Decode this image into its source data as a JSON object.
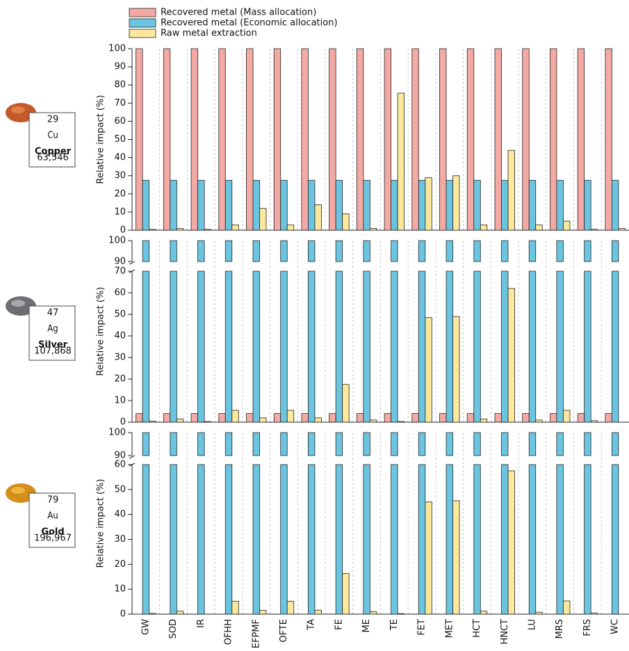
{
  "chart_data": [
    {
      "type": "bar",
      "y_label": "Relative impact (%)",
      "element": {
        "number": "29",
        "symbol": "Cu",
        "name": "Copper",
        "mass": "63,546"
      },
      "ylim": [
        0,
        100
      ],
      "yticks": [
        0,
        10,
        20,
        30,
        40,
        50,
        60,
        70,
        80,
        90,
        100
      ],
      "grid": true,
      "series": [
        {
          "name": "Recovered metal (Mass allocation)",
          "color": "#f4aaa4",
          "values": [
            100,
            100,
            100,
            100,
            100,
            100,
            100,
            100,
            100,
            100,
            100,
            100,
            100,
            100,
            100,
            100,
            100,
            100
          ]
        },
        {
          "name": "Recovered metal (Economic allocation)",
          "color": "#6cc5e0",
          "values": [
            27.5,
            27.5,
            27.5,
            27.5,
            27.5,
            27.5,
            27.5,
            27.5,
            27.5,
            27.5,
            27.5,
            27.5,
            27.5,
            27.5,
            27.5,
            27.5,
            27.5,
            27.5
          ]
        },
        {
          "name": "Raw metal extraction",
          "color": "#fbe89c",
          "values": [
            0.5,
            1,
            0.5,
            3,
            12,
            3,
            14,
            9,
            1,
            75.5,
            29,
            30,
            3,
            44,
            3,
            5,
            0.5,
            1
          ]
        }
      ]
    },
    {
      "type": "bar",
      "y_label": "Relative impact (%)",
      "element": {
        "number": "47",
        "symbol": "Ag",
        "name": "Silver",
        "mass": "107,868"
      },
      "ylim": [
        0,
        70
      ],
      "yticks": [
        0,
        10,
        20,
        30,
        40,
        50,
        60,
        70
      ],
      "ylim_upper": [
        90,
        100
      ],
      "yticks_upper": [
        90,
        100
      ],
      "grid": true,
      "series": [
        {
          "color": "#f4aaa4",
          "values": [
            4,
            4,
            4,
            4,
            4,
            4,
            4,
            4,
            4,
            4,
            4,
            4,
            4,
            4,
            4,
            4,
            4,
            4
          ]
        },
        {
          "color": "#6cc5e0",
          "values": [
            100,
            100,
            100,
            100,
            100,
            100,
            100,
            100,
            100,
            100,
            100,
            100,
            100,
            100,
            100,
            100,
            100,
            100
          ]
        },
        {
          "color": "#fbe89c",
          "values": [
            0.5,
            1.5,
            0.3,
            5.5,
            2,
            5.5,
            2,
            17.5,
            1,
            0.3,
            48.5,
            49,
            1.5,
            62,
            1,
            5.5,
            0.7,
            0
          ]
        }
      ]
    },
    {
      "type": "bar",
      "y_label": "Relative impact (%)",
      "element": {
        "number": "79",
        "symbol": "Au",
        "name": "Gold",
        "mass": "196,967"
      },
      "ylim": [
        0,
        60
      ],
      "yticks": [
        0,
        10,
        20,
        30,
        40,
        50,
        60
      ],
      "ylim_upper": [
        90,
        100
      ],
      "yticks_upper": [
        90,
        100
      ],
      "grid": true,
      "categories": [
        "GW",
        "SOD",
        "IR",
        "OFHH",
        "EFPMF",
        "OFTE",
        "TA",
        "FE",
        "ME",
        "TE",
        "FET",
        "MET",
        "HCT",
        "HNCT",
        "LU",
        "MRS",
        "FRS",
        "WC"
      ],
      "series": [
        {
          "color": "#f4aaa4",
          "values": [
            0,
            0,
            0,
            0,
            0,
            0,
            0,
            0,
            0,
            0,
            0,
            0,
            0,
            0,
            0,
            0,
            0,
            0
          ]
        },
        {
          "color": "#6cc5e0",
          "values": [
            100,
            100,
            100,
            100,
            100,
            100,
            100,
            100,
            100,
            100,
            100,
            100,
            100,
            100,
            100,
            100,
            100,
            100
          ]
        },
        {
          "color": "#fbe89c",
          "values": [
            0.3,
            1.2,
            0,
            5.2,
            1.5,
            5.2,
            1.6,
            16.3,
            1,
            0.2,
            45,
            45.5,
            1.2,
            57.5,
            0.8,
            5.3,
            0.5,
            0
          ]
        }
      ]
    }
  ]
}
